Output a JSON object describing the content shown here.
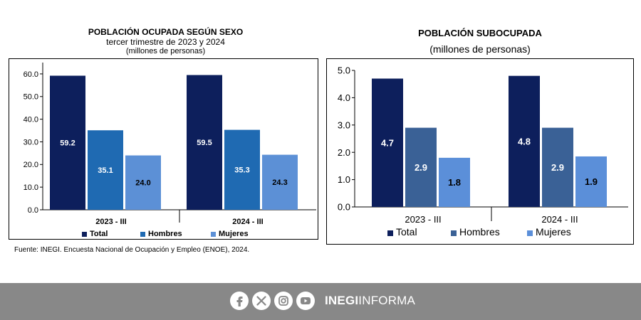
{
  "chart_data": [
    {
      "type": "bar",
      "title": "POBLACIÓN OCUPADA SEGÚN SEXO",
      "subtitle": "tercer trimestre de 2023 y 2024",
      "units": "(millones de personas)",
      "categories": [
        "2023 - III",
        "2024 - III"
      ],
      "series": [
        {
          "name": "Total",
          "values": [
            59.2,
            59.5
          ],
          "color": "#0d1f5c"
        },
        {
          "name": "Hombres",
          "values": [
            35.1,
            35.3
          ],
          "color": "#1f6ab2"
        },
        {
          "name": "Mujeres",
          "values": [
            24.0,
            24.3
          ],
          "color": "#5c90d6"
        }
      ],
      "data_labels": [
        [
          "59.2",
          "35.1",
          "24.0"
        ],
        [
          "59.5",
          "35.3",
          "24.3"
        ]
      ],
      "yticks": [
        "0.0",
        "10.0",
        "20.0",
        "30.0",
        "40.0",
        "50.0",
        "60.0"
      ],
      "ylim": [
        0,
        65
      ],
      "legend": "bottom",
      "grid": false
    },
    {
      "type": "bar",
      "title": "POBLACIÓN SUBOCUPADA",
      "units": "(millones de personas)",
      "categories": [
        "2023 - III",
        "2024 - III"
      ],
      "series": [
        {
          "name": "Total",
          "values": [
            4.7,
            4.8
          ],
          "color": "#0d1f5c"
        },
        {
          "name": "Hombres",
          "values": [
            2.9,
            2.9
          ],
          "color": "#3a6196"
        },
        {
          "name": "Mujeres",
          "values": [
            1.8,
            1.85
          ],
          "color": "#5b8fd9"
        }
      ],
      "data_labels": [
        [
          "4.7",
          "2.9",
          "1.8"
        ],
        [
          "4.8",
          "2.9",
          "1.9"
        ]
      ],
      "yticks": [
        "0.0",
        "1.0",
        "2.0",
        "3.0",
        "4.0",
        "5.0"
      ],
      "ylim": [
        0,
        5
      ],
      "legend": "bottom",
      "grid": false
    }
  ],
  "source_note": "Fuente: INEGI. Encuesta Nacional de Ocupación y Empleo (ENOE), 2024.",
  "footer": {
    "brand_bold": "INEGI",
    "brand_light": "INFORMA",
    "icons": [
      "facebook-icon",
      "x-icon",
      "instagram-icon",
      "youtube-icon"
    ]
  }
}
